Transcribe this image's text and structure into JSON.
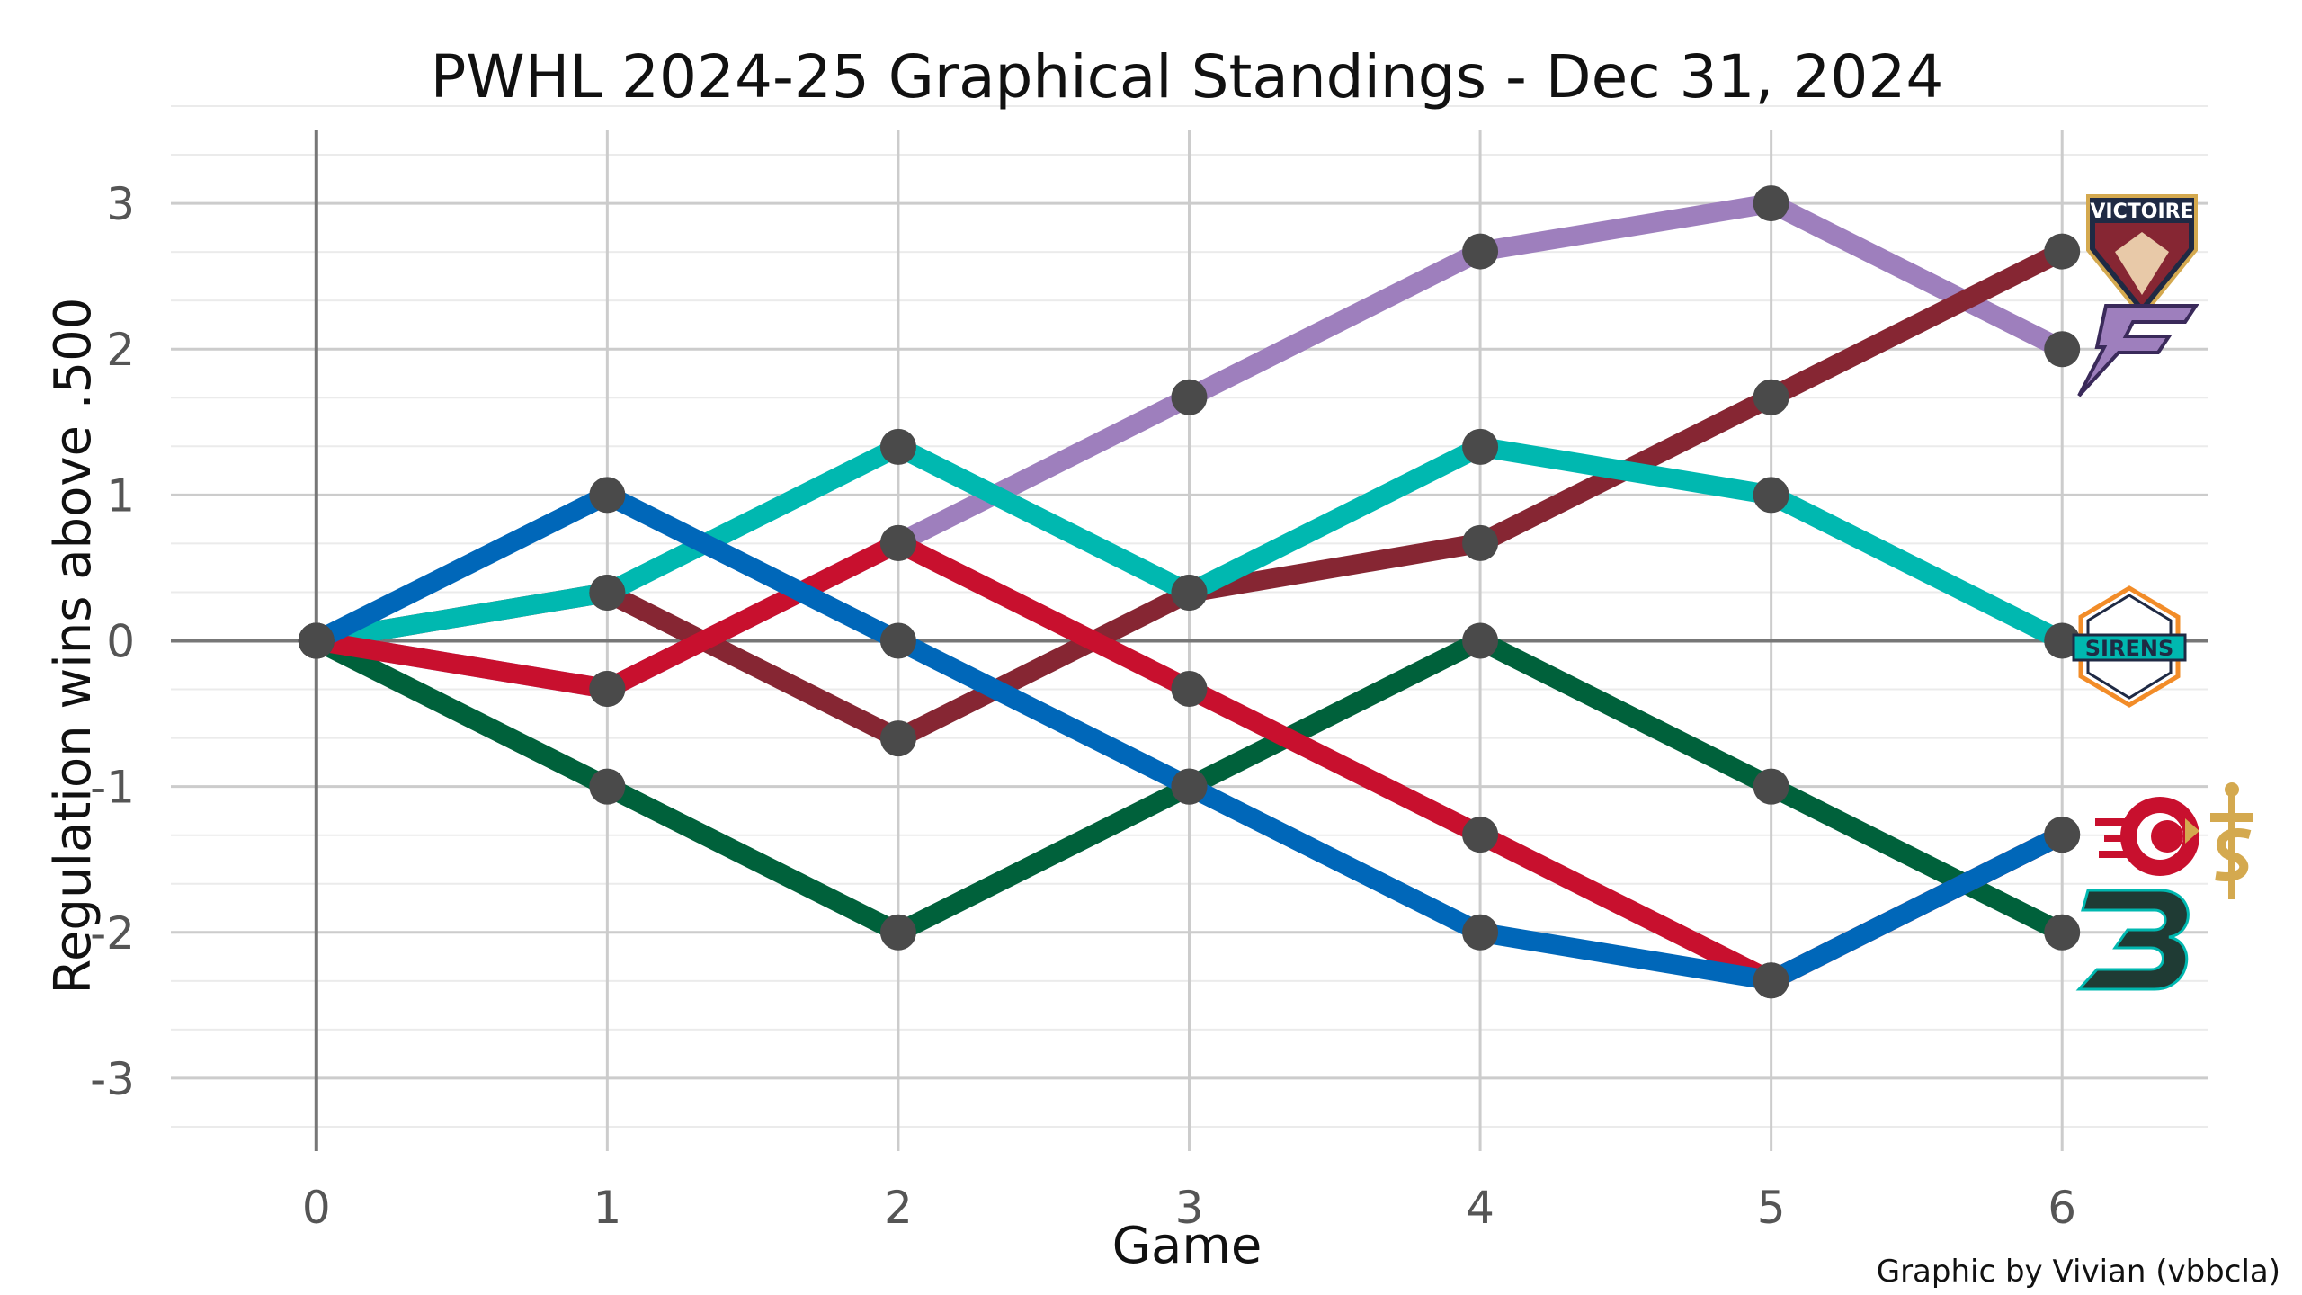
{
  "chart_data": {
    "type": "line",
    "title": "PWHL 2024-25 Graphical Standings - Dec 31, 2024",
    "xlabel": "Game",
    "ylabel": "Regulation wins above .500",
    "credit": "Graphic by Vivian (vbbcla)",
    "xlim": [
      -0.5,
      6.5
    ],
    "ylim": [
      -3.5,
      3.5
    ],
    "x_ticks": [
      0,
      1,
      2,
      3,
      4,
      5,
      6
    ],
    "y_ticks": [
      -3,
      -2,
      -1,
      0,
      1,
      2,
      3
    ],
    "grid": true,
    "x": [
      0,
      1,
      2,
      3,
      4,
      5,
      6
    ],
    "series": [
      {
        "color": "#9e7fbd",
        "logo": "minnesota-frost-logo",
        "values": [
          0,
          -0.33,
          0.67,
          1.67,
          2.67,
          3.0,
          2.0
        ]
      },
      {
        "color": "#862633",
        "logo": "montreal-victoire-logo",
        "values": [
          0,
          0.33,
          -0.67,
          0.33,
          0.67,
          1.67,
          2.67
        ]
      },
      {
        "color": "#00b8b0",
        "logo": "new-york-sirens-logo",
        "values": [
          0,
          0.33,
          1.33,
          0.33,
          1.33,
          1.0,
          0.0
        ]
      },
      {
        "color": "#00613b",
        "logo": "boston-fleet-logo",
        "values": [
          0,
          -1.0,
          -2.0,
          -1.0,
          0.0,
          -1.0,
          -2.0
        ]
      },
      {
        "color": "#c8102e",
        "logo": "ottawa-charge-logo",
        "values": [
          0,
          -0.33,
          0.67,
          -0.33,
          -1.33,
          -2.33,
          -1.33
        ]
      },
      {
        "color": "#0067b9",
        "logo": "toronto-sceptres-logo",
        "values": [
          0,
          1.0,
          0.0,
          -1.0,
          -2.0,
          -2.33,
          -1.33
        ]
      }
    ],
    "logo_text": {
      "victoire": "VICTOIRE",
      "sirens": "SIRENS"
    }
  }
}
